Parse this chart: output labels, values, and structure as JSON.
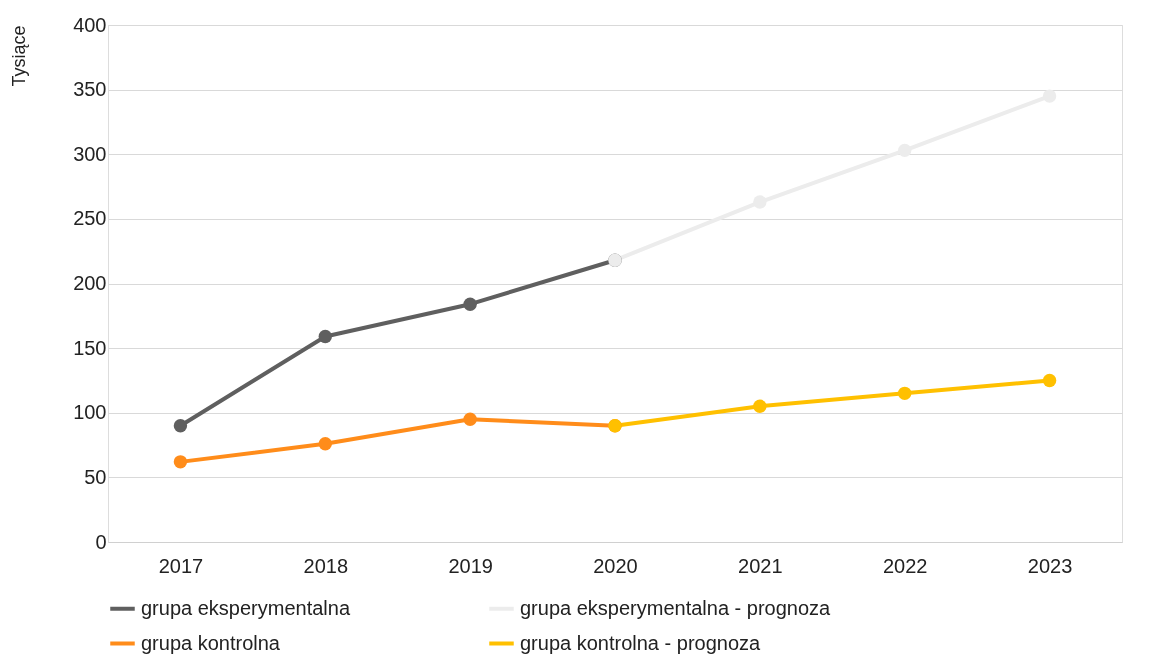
{
  "chart_data": {
    "type": "line",
    "ylabel": "Tysiące",
    "categories": [
      "2017",
      "2018",
      "2019",
      "2020",
      "2021",
      "2022",
      "2023"
    ],
    "series": [
      {
        "name": "grupa eksperymentalna",
        "color": "#5f5f5f",
        "values": [
          90,
          159,
          184,
          218,
          null,
          null,
          null
        ]
      },
      {
        "name": "grupa eksperymentalna - prognoza",
        "color": "#ececec",
        "values": [
          null,
          null,
          null,
          218,
          263,
          303,
          345
        ]
      },
      {
        "name": "grupa kontrolna",
        "color": "#ff8c1a",
        "values": [
          62,
          76,
          95,
          90,
          null,
          null,
          null
        ]
      },
      {
        "name": "grupa kontrolna - prognoza",
        "color": "#ffc000",
        "values": [
          null,
          null,
          null,
          90,
          105,
          115,
          125
        ]
      }
    ],
    "ylim": [
      0,
      400
    ],
    "yticks": [
      0,
      50,
      100,
      150,
      200,
      250,
      300,
      350,
      400
    ],
    "grid": "y",
    "legend": "bottom",
    "marker": "circle",
    "line_style": "solid"
  }
}
